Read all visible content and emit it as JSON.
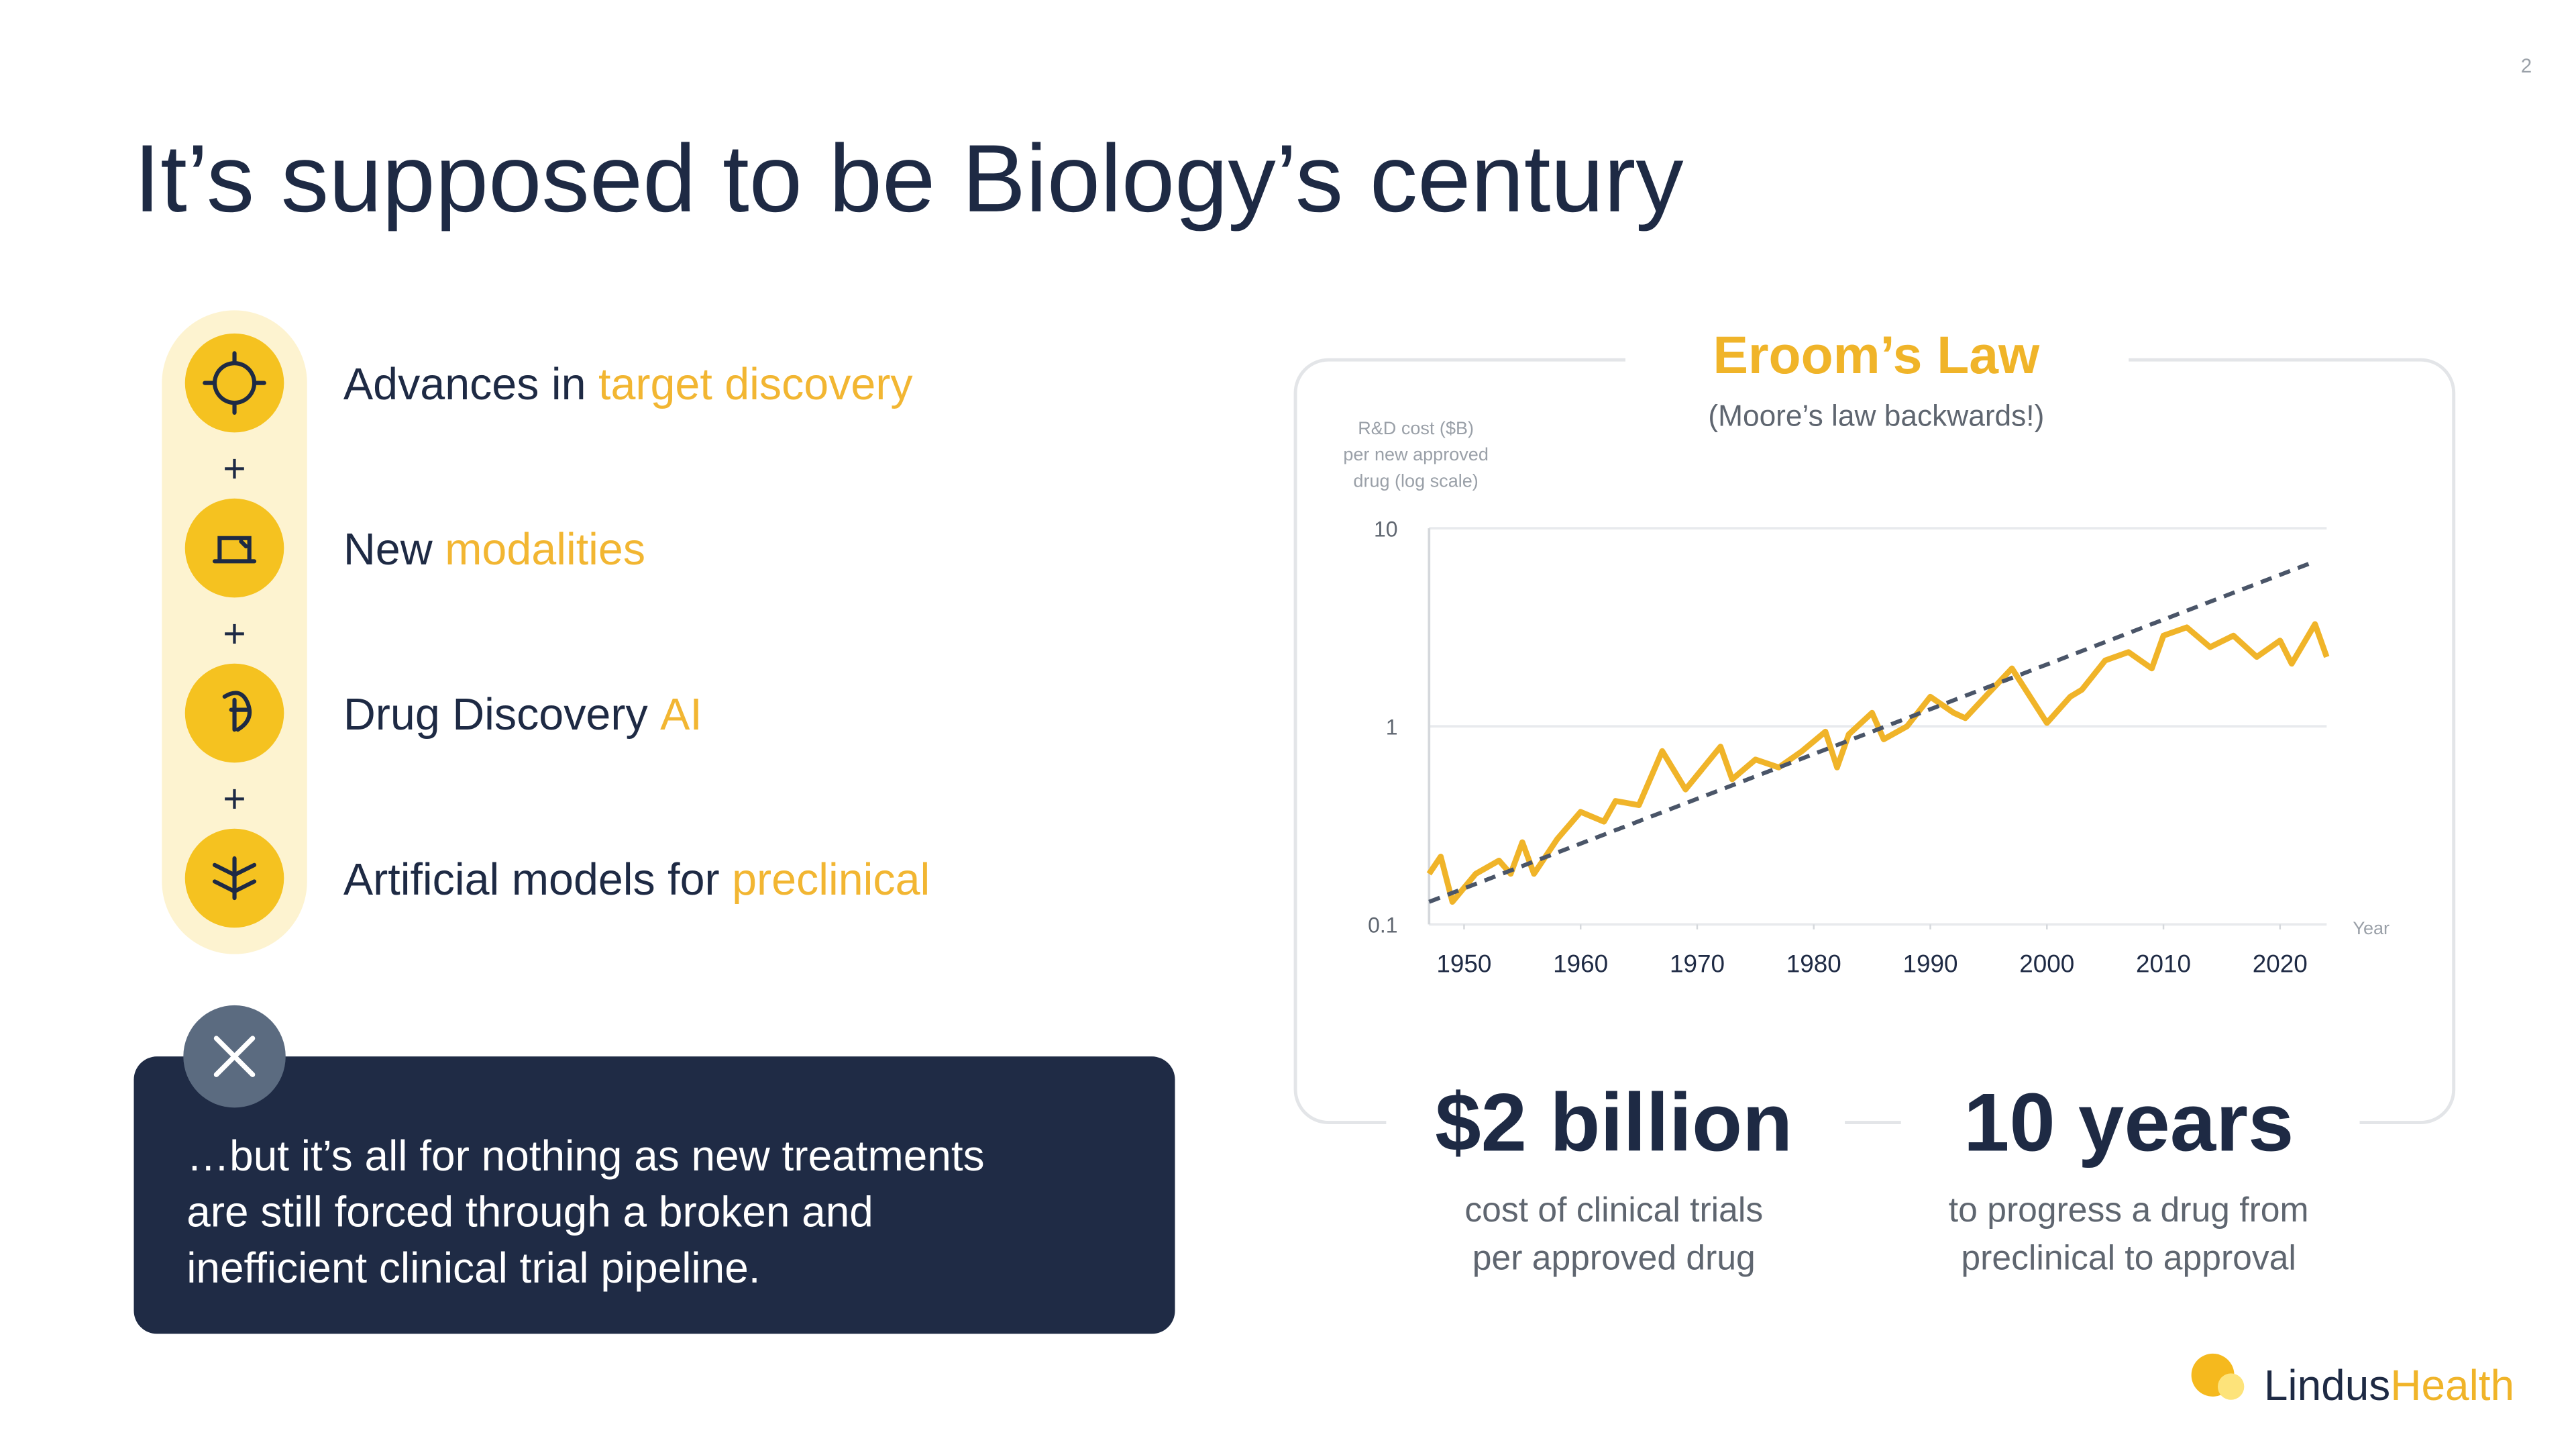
{
  "page_number": "2",
  "title": "It’s supposed to be Biology’s century",
  "list": {
    "separator": "+",
    "items": [
      {
        "text": "Advances in ",
        "highlight": "target discovery"
      },
      {
        "text": "New ",
        "highlight": "modalities"
      },
      {
        "text": "Drug Discovery ",
        "highlight": "AI"
      },
      {
        "text": "Artificial models for ",
        "highlight": "preclinical"
      }
    ]
  },
  "callout": {
    "lines": [
      "…but it’s all for nothing as new treatments",
      "are still forced through a broken and",
      "inefficient clinical trial pipeline."
    ]
  },
  "chart_data": {
    "type": "line",
    "title": "Eroom’s Law",
    "subtitle": "(Moore’s law backwards!)",
    "y_label": [
      "R&D cost ($B)",
      "per new approved",
      "drug (log scale)"
    ],
    "x_label": "Year",
    "yscale": "log",
    "grid": true,
    "xlim": [
      1947,
      2024
    ],
    "xticks": [
      1950,
      1960,
      1970,
      1980,
      1990,
      2000,
      2010,
      2020
    ],
    "ylim": [
      0.1,
      10
    ],
    "yticks": [
      0.1,
      1,
      10
    ],
    "series": [
      {
        "color": "#f0b429",
        "x": [
          1947,
          1948,
          1949,
          1951,
          1953,
          1954,
          1955,
          1956,
          1958,
          1960,
          1962,
          1963,
          1965,
          1967,
          1969,
          1972,
          1973,
          1975,
          1977,
          1979,
          1981,
          1982,
          1983,
          1985,
          1986,
          1988,
          1990,
          1992,
          1993,
          1995,
          1997,
          2000,
          2002,
          2003,
          2005,
          2007,
          2009,
          2010,
          2012,
          2014,
          2016,
          2018,
          2020,
          2021,
          2023,
          2024
        ],
        "values": [
          0.18,
          0.22,
          0.13,
          0.18,
          0.21,
          0.18,
          0.26,
          0.18,
          0.27,
          0.37,
          0.33,
          0.42,
          0.4,
          0.75,
          0.48,
          0.79,
          0.54,
          0.68,
          0.62,
          0.75,
          0.94,
          0.62,
          0.91,
          1.17,
          0.86,
          1.0,
          1.41,
          1.17,
          1.1,
          1.47,
          1.96,
          1.04,
          1.41,
          1.53,
          2.15,
          2.37,
          1.96,
          2.87,
          3.16,
          2.51,
          2.87,
          2.24,
          2.71,
          2.07,
          3.28,
          2.24
        ]
      },
      {
        "color": "#4a5568",
        "dash": true,
        "x": [
          1947,
          2023
        ],
        "values": [
          0.13,
          6.8
        ]
      }
    ]
  },
  "stats": [
    {
      "value": "$2 billion",
      "lines": [
        "cost of clinical trials",
        "per approved drug"
      ]
    },
    {
      "value": "10 years",
      "lines": [
        "to progress a drug from",
        "preclinical to approval"
      ]
    }
  ],
  "logo": {
    "first": "Lindus",
    "second": "Health"
  }
}
